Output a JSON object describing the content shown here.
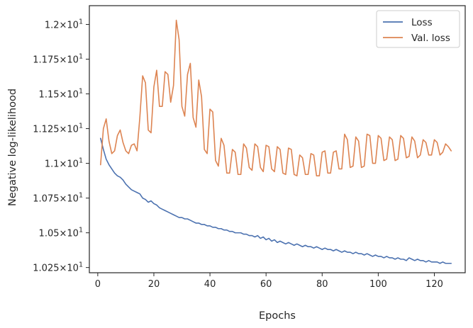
{
  "chart_data": {
    "type": "line",
    "xlabel": "Epochs",
    "ylabel": "Negative log-likelihood",
    "xlim": [
      -3,
      131
    ],
    "ylim": [
      10.2125,
      12.135
    ],
    "x_ticks": [
      {
        "value": 0,
        "label": "0"
      },
      {
        "value": 20,
        "label": "20"
      },
      {
        "value": 40,
        "label": "40"
      },
      {
        "value": 60,
        "label": "60"
      },
      {
        "value": 80,
        "label": "80"
      },
      {
        "value": 100,
        "label": "100"
      },
      {
        "value": 120,
        "label": "120"
      }
    ],
    "y_ticks": [
      {
        "value": 10.25,
        "mantissa": "1.025",
        "times": "×",
        "base": "10",
        "exp": "1"
      },
      {
        "value": 10.5,
        "mantissa": "1.05",
        "times": "×",
        "base": "10",
        "exp": "1"
      },
      {
        "value": 10.75,
        "mantissa": "1.075",
        "times": "×",
        "base": "10",
        "exp": "1"
      },
      {
        "value": 11.0,
        "mantissa": "1.1",
        "times": "×",
        "base": "10",
        "exp": "1"
      },
      {
        "value": 11.25,
        "mantissa": "1.125",
        "times": "×",
        "base": "10",
        "exp": "1"
      },
      {
        "value": 11.5,
        "mantissa": "1.15",
        "times": "×",
        "base": "10",
        "exp": "1"
      },
      {
        "value": 11.75,
        "mantissa": "1.175",
        "times": "×",
        "base": "10",
        "exp": "1"
      },
      {
        "value": 12.0,
        "mantissa": "1.2",
        "times": "×",
        "base": "10",
        "exp": "1"
      }
    ],
    "grid": false,
    "legend_position": "top-right",
    "series": [
      {
        "name": "Loss",
        "color": "#4c72b0",
        "x_start": 1,
        "values": [
          11.18,
          11.1,
          11.03,
          10.99,
          10.96,
          10.93,
          10.91,
          10.9,
          10.88,
          10.85,
          10.83,
          10.81,
          10.8,
          10.79,
          10.78,
          10.75,
          10.74,
          10.72,
          10.73,
          10.71,
          10.7,
          10.68,
          10.67,
          10.66,
          10.65,
          10.64,
          10.63,
          10.62,
          10.61,
          10.61,
          10.6,
          10.6,
          10.59,
          10.58,
          10.57,
          10.57,
          10.56,
          10.56,
          10.55,
          10.55,
          10.54,
          10.54,
          10.53,
          10.53,
          10.52,
          10.52,
          10.51,
          10.51,
          10.5,
          10.5,
          10.5,
          10.49,
          10.49,
          10.48,
          10.48,
          10.47,
          10.48,
          10.46,
          10.47,
          10.45,
          10.46,
          10.44,
          10.45,
          10.43,
          10.44,
          10.43,
          10.42,
          10.43,
          10.42,
          10.41,
          10.42,
          10.41,
          10.4,
          10.41,
          10.4,
          10.4,
          10.39,
          10.4,
          10.39,
          10.38,
          10.39,
          10.38,
          10.38,
          10.37,
          10.38,
          10.37,
          10.36,
          10.37,
          10.36,
          10.36,
          10.35,
          10.36,
          10.35,
          10.35,
          10.34,
          10.35,
          10.34,
          10.33,
          10.34,
          10.33,
          10.33,
          10.32,
          10.33,
          10.32,
          10.32,
          10.31,
          10.32,
          10.31,
          10.31,
          10.3,
          10.32,
          10.31,
          10.3,
          10.31,
          10.3,
          10.3,
          10.29,
          10.3,
          10.29,
          10.29,
          10.29,
          10.28,
          10.29,
          10.28,
          10.28,
          10.28
        ]
      },
      {
        "name": "Val. loss",
        "color": "#dd8452",
        "x_start": 1,
        "values": [
          10.99,
          11.25,
          11.32,
          11.16,
          11.07,
          11.09,
          11.2,
          11.24,
          11.15,
          11.09,
          11.07,
          11.13,
          11.14,
          11.09,
          11.33,
          11.63,
          11.58,
          11.24,
          11.22,
          11.55,
          11.67,
          11.41,
          11.41,
          11.66,
          11.64,
          11.44,
          11.56,
          12.03,
          11.89,
          11.41,
          11.34,
          11.64,
          11.72,
          11.33,
          11.26,
          11.6,
          11.48,
          11.1,
          11.07,
          11.39,
          11.37,
          11.02,
          10.98,
          11.18,
          11.13,
          10.93,
          10.93,
          11.1,
          11.08,
          10.92,
          10.92,
          11.14,
          11.11,
          10.97,
          10.95,
          11.14,
          11.12,
          10.97,
          10.94,
          11.13,
          11.12,
          10.96,
          10.94,
          11.12,
          11.1,
          10.93,
          10.92,
          11.11,
          11.1,
          10.92,
          10.91,
          11.06,
          11.04,
          10.92,
          10.92,
          11.07,
          11.06,
          10.91,
          10.91,
          11.08,
          11.09,
          10.93,
          10.93,
          11.08,
          11.09,
          10.96,
          10.96,
          11.21,
          11.17,
          10.97,
          10.98,
          11.19,
          11.16,
          10.97,
          10.98,
          11.21,
          11.2,
          11.0,
          11.0,
          11.2,
          11.18,
          11.02,
          11.03,
          11.19,
          11.17,
          11.02,
          11.03,
          11.2,
          11.18,
          11.04,
          11.05,
          11.19,
          11.16,
          11.04,
          11.06,
          11.17,
          11.15,
          11.06,
          11.06,
          11.17,
          11.15,
          11.06,
          11.08,
          11.14,
          11.12,
          11.09
        ]
      }
    ]
  }
}
